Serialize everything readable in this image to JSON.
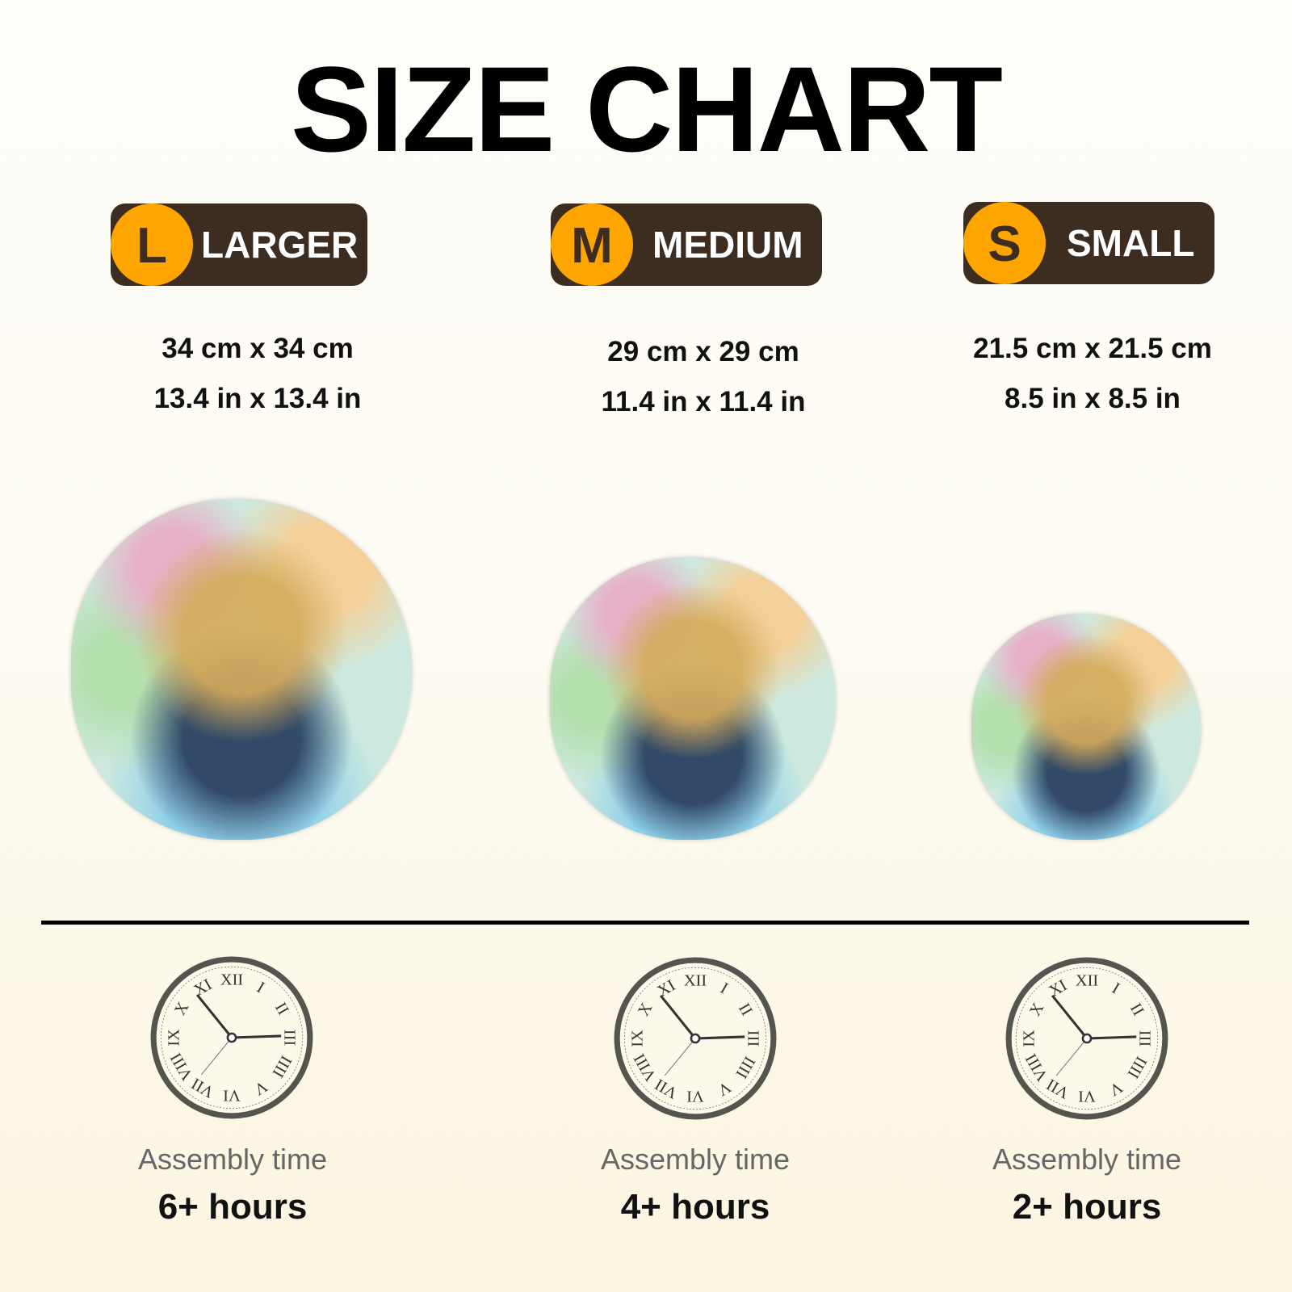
{
  "title": "SIZE CHART",
  "sizes": [
    {
      "letter": "L",
      "name": "LARGER",
      "cm": "34 cm x 34 cm",
      "in": "13.4 in x 13.4 in",
      "assembly_label": "Assembly time",
      "assembly_time": "6+ hours"
    },
    {
      "letter": "M",
      "name": "MEDIUM",
      "cm": "29 cm x 29 cm",
      "in": "11.4 in x 11.4 in",
      "assembly_label": "Assembly time",
      "assembly_time": "4+ hours"
    },
    {
      "letter": "S",
      "name": "SMALL",
      "cm": "21.5 cm x 21.5 cm",
      "in": "8.5 in x 8.5 in",
      "assembly_label": "Assembly time",
      "assembly_time": "2+ hours"
    }
  ],
  "colors": {
    "badge_circle": "#fea500",
    "badge_bg": "#3d2c20"
  },
  "icons": {
    "clock": "clock-icon",
    "puzzle": "elephant-puzzle-image"
  }
}
